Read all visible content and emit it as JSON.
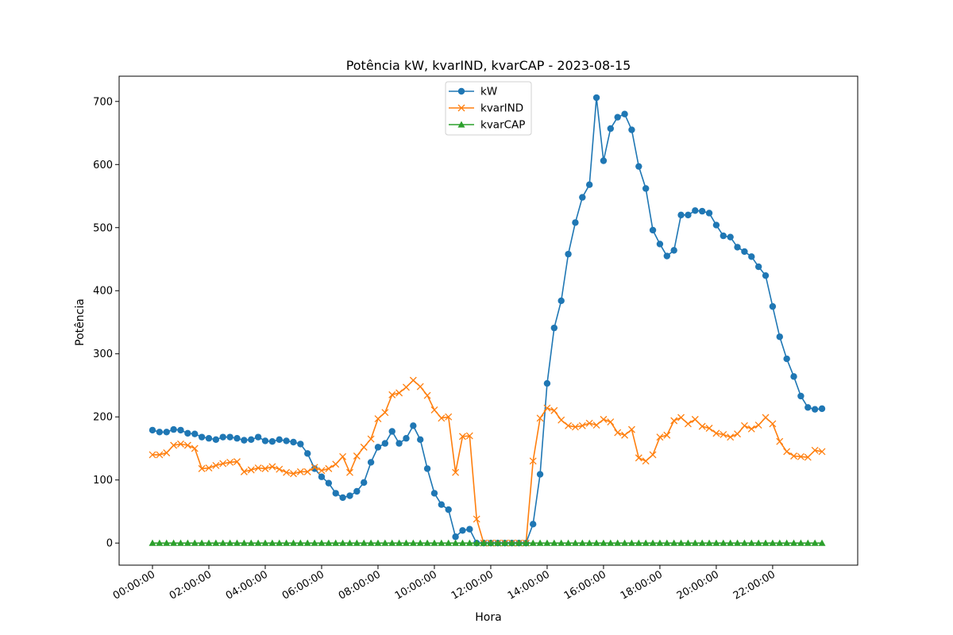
{
  "chart_data": {
    "type": "line",
    "title": "Potência kW, kvarIND, kvarCAP - 2023-08-15",
    "xlabel": "Hora",
    "ylabel": "Potência",
    "x_interval_minutes": 15,
    "x_tick_labels": [
      "00:00:00",
      "02:00:00",
      "04:00:00",
      "06:00:00",
      "08:00:00",
      "10:00:00",
      "12:00:00",
      "14:00:00",
      "16:00:00",
      "18:00:00",
      "20:00:00",
      "22:00:00"
    ],
    "y_ticks": [
      0,
      100,
      200,
      300,
      400,
      500,
      600,
      700
    ],
    "ylim": [
      -35,
      740
    ],
    "grid": false,
    "legend_position": "upper center",
    "series": [
      {
        "name": "kW",
        "color": "#1f77b4",
        "marker": "circle",
        "values": [
          179,
          176,
          176,
          180,
          179,
          174,
          173,
          168,
          166,
          164,
          168,
          168,
          166,
          163,
          164,
          168,
          162,
          161,
          164,
          162,
          160,
          157,
          142,
          118,
          105,
          95,
          79,
          72,
          75,
          82,
          96,
          128,
          152,
          158,
          177,
          158,
          166,
          186,
          164,
          118,
          79,
          61,
          53,
          10,
          20,
          22,
          0,
          0,
          0,
          0,
          0,
          0,
          0,
          0,
          30,
          109,
          253,
          341,
          384,
          458,
          508,
          548,
          568,
          706,
          606,
          657,
          675,
          680,
          655,
          597,
          562,
          496,
          474,
          455,
          464,
          520,
          520,
          527,
          526,
          523,
          504,
          487,
          485,
          469,
          462,
          454,
          438,
          424,
          375,
          327,
          292,
          264,
          233,
          215,
          212,
          213
        ]
      },
      {
        "name": "kvarIND",
        "color": "#ff7f0e",
        "marker": "x",
        "values": [
          140,
          140,
          143,
          155,
          157,
          155,
          150,
          118,
          119,
          123,
          126,
          128,
          129,
          113,
          116,
          119,
          118,
          121,
          117,
          112,
          110,
          113,
          113,
          120,
          115,
          118,
          125,
          137,
          112,
          138,
          152,
          165,
          197,
          207,
          235,
          238,
          247,
          258,
          248,
          234,
          211,
          198,
          200,
          112,
          169,
          170,
          38,
          0,
          0,
          0,
          0,
          0,
          0,
          0,
          130,
          198,
          214,
          210,
          195,
          186,
          184,
          186,
          190,
          187,
          196,
          192,
          175,
          171,
          180,
          135,
          130,
          140,
          168,
          171,
          194,
          199,
          189,
          196,
          185,
          182,
          174,
          172,
          168,
          173,
          186,
          181,
          187,
          199,
          189,
          161,
          145,
          138,
          137,
          136,
          147,
          145
        ]
      },
      {
        "name": "kvarCAP",
        "color": "#2ca02c",
        "marker": "triangle",
        "values": [
          0,
          0,
          0,
          0,
          0,
          0,
          0,
          0,
          0,
          0,
          0,
          0,
          0,
          0,
          0,
          0,
          0,
          0,
          0,
          0,
          0,
          0,
          0,
          0,
          0,
          0,
          0,
          0,
          0,
          0,
          0,
          0,
          0,
          0,
          0,
          0,
          0,
          0,
          0,
          0,
          0,
          0,
          0,
          0,
          0,
          0,
          0,
          0,
          0,
          0,
          0,
          0,
          0,
          0,
          0,
          0,
          0,
          0,
          0,
          0,
          0,
          0,
          0,
          0,
          0,
          0,
          0,
          0,
          0,
          0,
          0,
          0,
          0,
          0,
          0,
          0,
          0,
          0,
          0,
          0,
          0,
          0,
          0,
          0,
          0,
          0,
          0,
          0,
          0,
          0,
          0,
          0,
          0,
          0,
          0,
          0
        ]
      }
    ]
  }
}
